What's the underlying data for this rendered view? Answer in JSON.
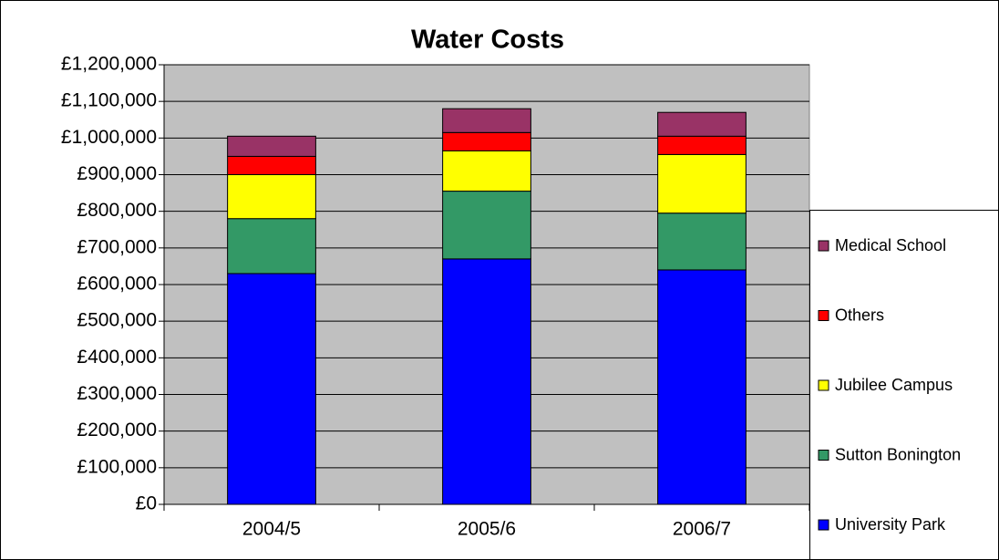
{
  "chart_data": {
    "type": "stacked_bar",
    "title": "Water Costs",
    "categories": [
      "2004/5",
      "2005/6",
      "2006/7"
    ],
    "series": [
      {
        "name": "University Park",
        "color": "#0000ff",
        "values": [
          630000,
          670000,
          640000
        ]
      },
      {
        "name": "Sutton Bonington",
        "color": "#339966",
        "values": [
          150000,
          185000,
          155000
        ]
      },
      {
        "name": "Jubilee Campus",
        "color": "#ffff00",
        "values": [
          120000,
          110000,
          160000
        ]
      },
      {
        "name": "Others",
        "color": "#ff0000",
        "values": [
          50000,
          50000,
          50000
        ]
      },
      {
        "name": "Medical School",
        "color": "#993366",
        "values": [
          55000,
          65000,
          65000
        ]
      }
    ],
    "ylim": [
      0,
      1200000
    ],
    "yticks": [
      {
        "value": 0,
        "label": "£0"
      },
      {
        "value": 100000,
        "label": "£100,000"
      },
      {
        "value": 200000,
        "label": "£200,000"
      },
      {
        "value": 300000,
        "label": "£300,000"
      },
      {
        "value": 400000,
        "label": "£400,000"
      },
      {
        "value": 500000,
        "label": "£500,000"
      },
      {
        "value": 600000,
        "label": "£600,000"
      },
      {
        "value": 700000,
        "label": "£700,000"
      },
      {
        "value": 800000,
        "label": "£800,000"
      },
      {
        "value": 900000,
        "label": "£900,000"
      },
      {
        "value": 1000000,
        "label": "£1,000,000"
      },
      {
        "value": 1100000,
        "label": "£1,100,000"
      },
      {
        "value": 1200000,
        "label": "£1,200,000"
      }
    ],
    "grid": true,
    "plot_background": "#c0c0c0",
    "legend": "right"
  }
}
